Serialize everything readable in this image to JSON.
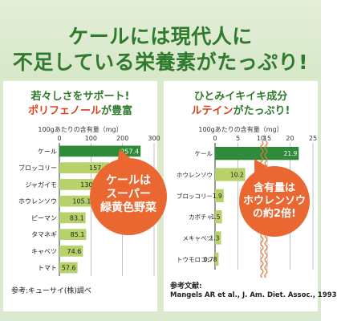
{
  "headline": {
    "line1": "ケールには現代人に",
    "line2": "不足している栄養素がたっぷり!"
  },
  "left_panel": {
    "title_line1": "若々しさをサポート!",
    "title_line2_red": "ポリフェノール",
    "title_line2_rest": "が豊富",
    "unit": "100gあたりの含有量（mg）",
    "bubble": [
      "ケールは",
      "スーパー",
      "緑黄色野菜"
    ],
    "source": "参考:キューサイ(株)調べ"
  },
  "right_panel": {
    "title_line1": "ひとみイキイキ成分",
    "title_line2_red": "ルテイン",
    "title_line2_rest": "がたっぷり!",
    "unit": "100gあたりの含有量（mg）",
    "bubble": [
      "含有量は",
      "ホウレンソウ",
      "の約2倍!"
    ],
    "source_label": "参考文献:",
    "source_text": "Mangels AR et al., J. Am. Diet. Assoc., 1993"
  },
  "colors": {
    "highlight_bar": "#2e8b3a",
    "bar": "#b7d26b",
    "accent_text": "#2f7a2c",
    "red_text": "#d8431c",
    "bubble": "#ea6731",
    "background": "#dbe9cf"
  },
  "chart_data": [
    {
      "type": "bar",
      "orientation": "horizontal",
      "xlabel": "100gあたりの含有量（mg）",
      "xlim": [
        0,
        300
      ],
      "ticks": [
        0,
        100,
        200,
        300
      ],
      "grid": true,
      "categories": [
        "ケール",
        "ブロッコリー",
        "ジャガイモ",
        "ホウレンソウ",
        "ピーマン",
        "タマネギ",
        "キャベツ",
        "トマト"
      ],
      "values": [
        257.4,
        157.4,
        130.1,
        105.1,
        83.1,
        85.1,
        74.6,
        57.6
      ],
      "labels": [
        "257.4",
        "157.4",
        "130.1",
        "105.1",
        "83.1",
        "85.1",
        "74.6",
        "57.6"
      ],
      "highlight_index": 0
    },
    {
      "type": "bar",
      "orientation": "horizontal",
      "xlabel": "100gあたりの含有量（mg）",
      "axis_break": [
        10,
        15
      ],
      "xlim": [
        0,
        25
      ],
      "ticks": [
        0,
        5,
        10,
        15,
        20,
        25
      ],
      "grid": true,
      "categories": [
        "ケール",
        "ホウレンソウ",
        "ブロッコリー",
        "カボチャ",
        "メキャベツ",
        "トウモロコシ"
      ],
      "values": [
        21.9,
        10.2,
        1.9,
        1.5,
        1.3,
        0.78
      ],
      "labels": [
        "21.9",
        "10.2",
        "1.9",
        "1.5",
        "1.3",
        "0.78"
      ],
      "highlight_index": 0
    }
  ]
}
